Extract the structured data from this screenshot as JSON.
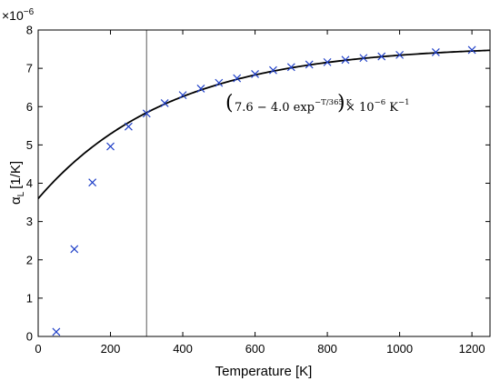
{
  "chart_data": {
    "type": "scatter",
    "xlabel": "Temperature [K]",
    "ylabel_main": "α",
    "ylabel_sub": "L",
    "ylabel_unit": "[1/K]",
    "y_multiplier": "×10",
    "y_multiplier_exp": "−6",
    "xlim": [
      0,
      1250
    ],
    "ylim": [
      0,
      8
    ],
    "x_ticks": [
      0,
      200,
      400,
      600,
      800,
      1000,
      1200
    ],
    "y_ticks": [
      0,
      1,
      2,
      3,
      4,
      5,
      6,
      7,
      8
    ],
    "x_tick_labels": [
      "0",
      "200",
      "400",
      "600",
      "800",
      "1000",
      "1200"
    ],
    "y_tick_labels": [
      "0",
      "1",
      "2",
      "3",
      "4",
      "5",
      "6",
      "7",
      "8"
    ],
    "grid": false,
    "marker_color": "#2040c8",
    "vline_color": "#7f7f7f",
    "vline_x": 300,
    "series": [
      {
        "type": "scatter",
        "marker": "x",
        "x": [
          50,
          100,
          150,
          200,
          250,
          300,
          350,
          400,
          450,
          500,
          550,
          600,
          650,
          700,
          750,
          800,
          850,
          900,
          950,
          1000,
          1100,
          1200
        ],
        "y": [
          0.12,
          2.28,
          4.02,
          4.96,
          5.48,
          5.82,
          6.09,
          6.3,
          6.47,
          6.62,
          6.74,
          6.85,
          6.95,
          7.03,
          7.1,
          7.16,
          7.22,
          7.27,
          7.31,
          7.35,
          7.42,
          7.48
        ]
      },
      {
        "type": "line",
        "function": "7.6 - 4.0*exp(-x/365)",
        "x_range": [
          0,
          1250
        ]
      }
    ],
    "annotation": {
      "lparen": "(",
      "part1": "7.6 − 4.0 exp",
      "exponent": "−T/365 K",
      "rparen": ")",
      "part2": " × 10",
      "exp2": "−6",
      "part3": " K",
      "exp3": "−1"
    }
  }
}
